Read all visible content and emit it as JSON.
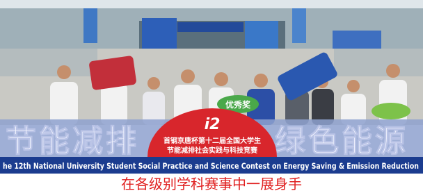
{
  "banner": {
    "slogan_left": "节能减排",
    "slogan_right": "绿色能源",
    "logo_line1": "首钢京唐杯第十二届全国大学生",
    "logo_line2": "节能减排社会实践与科技竞赛",
    "english": "he 12th National University Student Social Practice and Science Contest on Energy Saving & Emission Reduction"
  },
  "signs": {
    "award": "优秀奖"
  },
  "caption": "在各级别学科赛事中一展身手"
}
